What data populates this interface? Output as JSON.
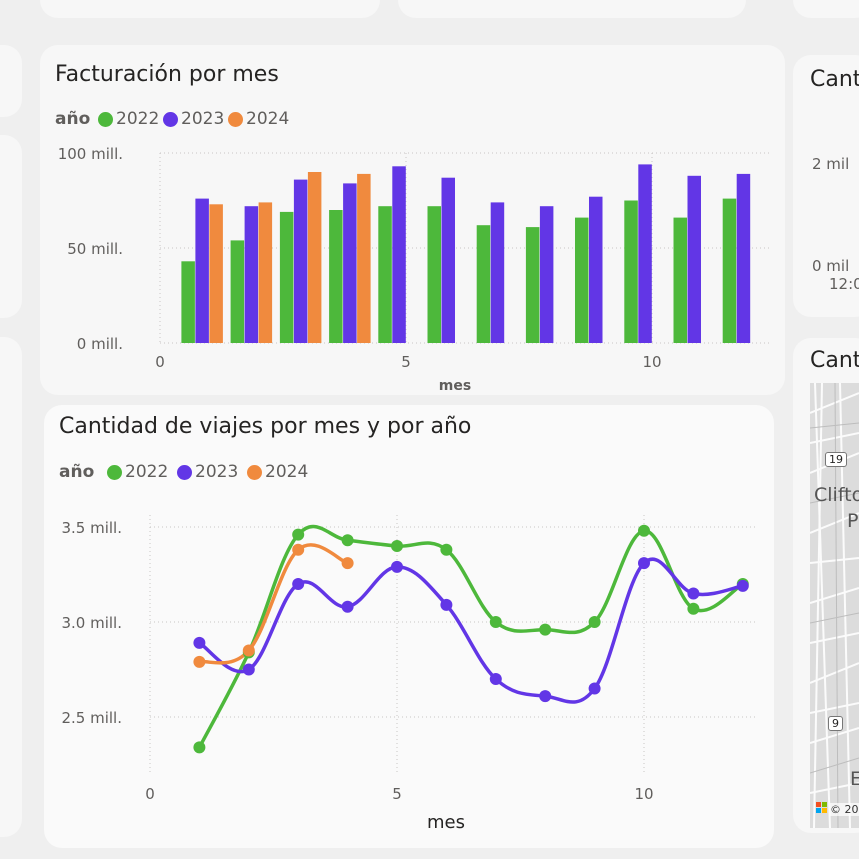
{
  "right_panels": {
    "top_title": "Cant",
    "top_ticks": [
      "2 mil",
      "0 mil"
    ],
    "top_time": "12:0",
    "bottom_title": "Cant",
    "map_labels": [
      "Clifto",
      "P",
      "E"
    ],
    "route_badges": [
      "19",
      "9"
    ],
    "copyright": "© 20"
  },
  "bar_chart": {
    "title": "Facturación por mes",
    "legend_title": "año",
    "legend": [
      {
        "label": "2022",
        "color": "#4db83b"
      },
      {
        "label": "2023",
        "color": "#6236e6"
      },
      {
        "label": "2024",
        "color": "#f08a3e"
      }
    ],
    "xlabel": "mes",
    "y_ticks": [
      "100 mill.",
      "50 mill.",
      "0 mill."
    ],
    "x_ticks": [
      "0",
      "5",
      "10"
    ]
  },
  "line_chart": {
    "title": "Cantidad de viajes por mes y por año",
    "legend_title": "año",
    "legend": [
      {
        "label": "2022",
        "color": "#4db83b"
      },
      {
        "label": "2023",
        "color": "#6236e6"
      },
      {
        "label": "2024",
        "color": "#f08a3e"
      }
    ],
    "xlabel": "mes",
    "y_ticks": [
      "3.5 mill.",
      "3.0 mill.",
      "2.5 mill."
    ],
    "x_ticks": [
      "0",
      "5",
      "10"
    ]
  },
  "chart_data": [
    {
      "type": "bar",
      "title": "Facturación por mes",
      "xlabel": "mes",
      "ylabel": "",
      "x": [
        1,
        2,
        3,
        4,
        5,
        6,
        7,
        8,
        9,
        10,
        11,
        12
      ],
      "xlim": [
        0,
        12.5
      ],
      "ylim": [
        0,
        100
      ],
      "y_unit": "mill.",
      "grid": true,
      "legend_position": "top-left",
      "series": [
        {
          "name": "2022",
          "color": "#4db83b",
          "values": [
            43,
            54,
            69,
            70,
            72,
            72,
            62,
            61,
            66,
            75,
            66,
            76
          ]
        },
        {
          "name": "2023",
          "color": "#6236e6",
          "values": [
            76,
            72,
            86,
            84,
            93,
            87,
            74,
            72,
            77,
            94,
            88,
            89
          ]
        },
        {
          "name": "2024",
          "color": "#f08a3e",
          "values": [
            73,
            74,
            90,
            89,
            null,
            null,
            null,
            null,
            null,
            null,
            null,
            null
          ]
        }
      ]
    },
    {
      "type": "line",
      "title": "Cantidad de viajes por mes y por año",
      "xlabel": "mes",
      "ylabel": "",
      "x": [
        1,
        2,
        3,
        4,
        5,
        6,
        7,
        8,
        9,
        10,
        11,
        12
      ],
      "xlim": [
        0,
        12.5
      ],
      "ylim": [
        2.2,
        3.55
      ],
      "y_unit": "mill.",
      "grid": true,
      "legend_position": "top-left",
      "series": [
        {
          "name": "2022",
          "color": "#4db83b",
          "values": [
            2.34,
            2.84,
            3.46,
            3.43,
            3.4,
            3.38,
            3.0,
            2.96,
            3.0,
            3.48,
            3.07,
            3.2
          ]
        },
        {
          "name": "2023",
          "color": "#6236e6",
          "values": [
            2.89,
            2.75,
            3.2,
            3.08,
            3.29,
            3.09,
            2.7,
            2.61,
            2.65,
            3.31,
            3.15,
            3.19
          ]
        },
        {
          "name": "2024",
          "color": "#f08a3e",
          "values": [
            2.79,
            2.85,
            3.38,
            3.31,
            null,
            null,
            null,
            null,
            null,
            null,
            null,
            null
          ]
        }
      ]
    }
  ]
}
